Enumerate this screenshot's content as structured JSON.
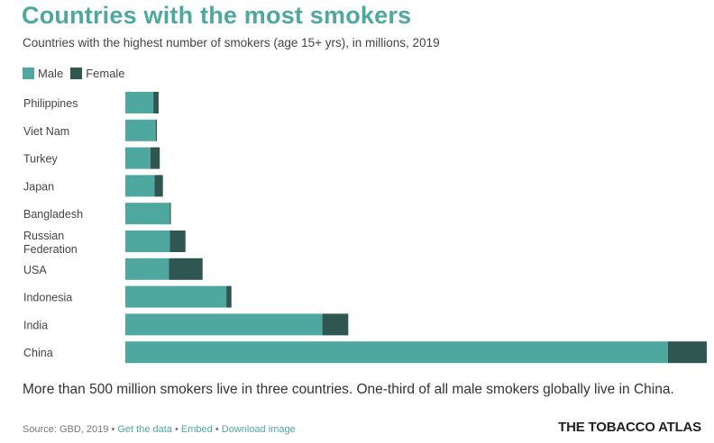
{
  "title": "Countries with the most smokers",
  "subtitle": "Countries with the highest number of smokers (age 15+ yrs), in millions, 2019",
  "legend": {
    "male": "Male",
    "female": "Female"
  },
  "colors": {
    "male": "#4fa8a0",
    "female": "#2f5651",
    "title": "#4fa8a0"
  },
  "caption": "More than 500 million smokers live in three countries. One-third of all male smokers globally live in China.",
  "footer": {
    "source": "Source: GBD, 2019",
    "sep": "•",
    "get_data": "Get the data",
    "embed": "Embed",
    "download": "Download image"
  },
  "brand": "THE TOBACCO ATLAS",
  "chart_data": {
    "type": "bar",
    "orientation": "horizontal",
    "stacked": true,
    "categories": [
      "Philippines",
      "Viet Nam",
      "Turkey",
      "Japan",
      "Bangladesh",
      "Russian Federation",
      "USA",
      "Indonesia",
      "India",
      "China"
    ],
    "series": [
      {
        "name": "Male",
        "values": [
          14.4,
          15.6,
          12.9,
          15.0,
          22.8,
          22.8,
          22.4,
          51.9,
          101.2,
          278.6
        ]
      },
      {
        "name": "Female",
        "values": [
          2.7,
          0.6,
          4.8,
          4.3,
          0.6,
          8.1,
          17.3,
          2.6,
          13.3,
          20.0
        ]
      }
    ]
  }
}
